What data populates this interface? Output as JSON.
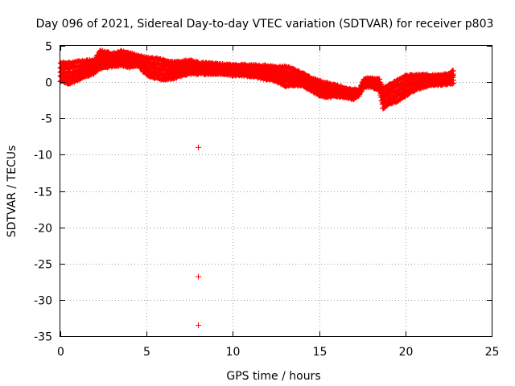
{
  "chart_data": {
    "type": "scatter",
    "title": "Day 096 of 2021, Sidereal Day-to-day VTEC variation (SDTVAR) for receiver p803",
    "xlabel": "GPS time / hours",
    "ylabel": "SDTVAR / TECUs",
    "xlim": [
      0,
      25
    ],
    "ylim": [
      -35,
      5
    ],
    "xticks": [
      0,
      5,
      10,
      15,
      20,
      25
    ],
    "xtick_labels": [
      "0",
      "5",
      "10",
      "15",
      "20",
      "25"
    ],
    "yticks": [
      5,
      0,
      -5,
      -10,
      -15,
      -20,
      -25,
      -30,
      -35
    ],
    "ytick_labels": [
      "5",
      "0",
      "-5",
      "-10",
      "-15",
      "-20",
      "-25",
      "-30",
      "-35"
    ],
    "grid": true,
    "marker": "+",
    "series_color": "#ff0000",
    "band_trend": [
      {
        "x": 0.0,
        "low": 0.2,
        "high": 2.6
      },
      {
        "x": 0.5,
        "low": -0.2,
        "high": 2.6
      },
      {
        "x": 1.0,
        "low": 0.3,
        "high": 2.8
      },
      {
        "x": 1.5,
        "low": 0.9,
        "high": 2.9
      },
      {
        "x": 2.0,
        "low": 1.3,
        "high": 3.0
      },
      {
        "x": 2.3,
        "low": 1.9,
        "high": 4.3
      },
      {
        "x": 3.0,
        "low": 2.2,
        "high": 3.9
      },
      {
        "x": 3.5,
        "low": 2.4,
        "high": 4.2
      },
      {
        "x": 4.0,
        "low": 2.1,
        "high": 4.0
      },
      {
        "x": 4.5,
        "low": 2.3,
        "high": 3.6
      },
      {
        "x": 5.0,
        "low": 1.0,
        "high": 3.3
      },
      {
        "x": 5.5,
        "low": 0.6,
        "high": 3.2
      },
      {
        "x": 6.0,
        "low": 0.4,
        "high": 3.0
      },
      {
        "x": 6.5,
        "low": 0.5,
        "high": 2.7
      },
      {
        "x": 7.0,
        "low": 0.9,
        "high": 2.8
      },
      {
        "x": 7.5,
        "low": 1.2,
        "high": 3.0
      },
      {
        "x": 8.0,
        "low": 1.2,
        "high": 2.6
      },
      {
        "x": 9.0,
        "low": 1.2,
        "high": 2.5
      },
      {
        "x": 10.0,
        "low": 1.0,
        "high": 2.3
      },
      {
        "x": 11.0,
        "low": 0.9,
        "high": 2.3
      },
      {
        "x": 12.0,
        "low": 0.4,
        "high": 2.2
      },
      {
        "x": 12.5,
        "low": 0.2,
        "high": 2.0
      },
      {
        "x": 13.0,
        "low": -0.5,
        "high": 2.1
      },
      {
        "x": 13.5,
        "low": -0.4,
        "high": 1.8
      },
      {
        "x": 14.0,
        "low": -0.4,
        "high": 1.2
      },
      {
        "x": 14.5,
        "low": -1.1,
        "high": 0.6
      },
      {
        "x": 15.0,
        "low": -1.8,
        "high": 0.1
      },
      {
        "x": 15.5,
        "low": -2.0,
        "high": -0.2
      },
      {
        "x": 16.0,
        "low": -1.9,
        "high": -0.5
      },
      {
        "x": 16.5,
        "low": -2.1,
        "high": -0.8
      },
      {
        "x": 17.0,
        "low": -2.3,
        "high": -1.1
      },
      {
        "x": 17.3,
        "low": -1.8,
        "high": -1.1
      },
      {
        "x": 17.6,
        "low": -0.7,
        "high": 0.4
      },
      {
        "x": 18.0,
        "low": -0.6,
        "high": 0.5
      },
      {
        "x": 18.5,
        "low": -1.2,
        "high": 0.3
      },
      {
        "x": 18.7,
        "low": -3.6,
        "high": -0.9
      },
      {
        "x": 19.0,
        "low": -3.0,
        "high": -0.5
      },
      {
        "x": 19.5,
        "low": -2.6,
        "high": 0.2
      },
      {
        "x": 20.0,
        "low": -1.9,
        "high": 0.8
      },
      {
        "x": 20.5,
        "low": -1.1,
        "high": 0.9
      },
      {
        "x": 21.0,
        "low": -0.7,
        "high": 1.0
      },
      {
        "x": 21.5,
        "low": -0.4,
        "high": 0.9
      },
      {
        "x": 22.0,
        "low": -0.3,
        "high": 0.9
      },
      {
        "x": 22.5,
        "low": -0.2,
        "high": 1.1
      },
      {
        "x": 22.8,
        "low": -0.1,
        "high": 1.6
      }
    ],
    "outliers": [
      {
        "x": 8.0,
        "y": -9.0
      },
      {
        "x": 8.0,
        "y": -26.8
      },
      {
        "x": 8.0,
        "y": -33.5
      }
    ]
  }
}
